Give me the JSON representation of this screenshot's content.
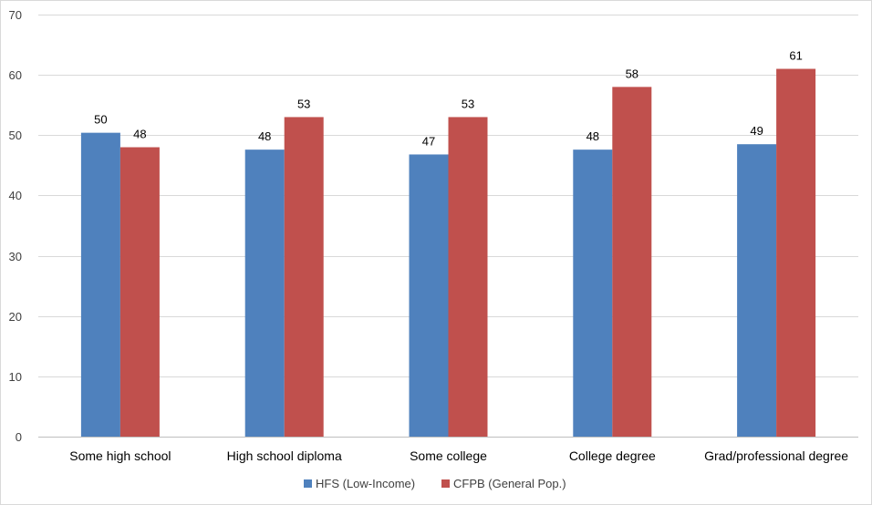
{
  "chart_data": {
    "type": "bar",
    "categories": [
      "Some high school",
      "High school diploma",
      "Some college",
      "College degree",
      "Grad/professional degree"
    ],
    "series": [
      {
        "name": "HFS (Low-Income)",
        "values": [
          50.4,
          47.6,
          46.8,
          47.6,
          48.5
        ],
        "labels": [
          "50",
          "48",
          "47",
          "48",
          "49"
        ],
        "color": "#4F81BD"
      },
      {
        "name": "CFPB (General Pop.)",
        "values": [
          48,
          53,
          53,
          58,
          61
        ],
        "labels": [
          "48",
          "53",
          "53",
          "58",
          "61"
        ],
        "color": "#C0504D"
      }
    ],
    "ylim": [
      0,
      70
    ],
    "yticks": [
      0,
      10,
      20,
      30,
      40,
      50,
      60,
      70
    ],
    "grid": true,
    "legend": "bottom",
    "title": "",
    "xlabel": "",
    "ylabel": ""
  }
}
